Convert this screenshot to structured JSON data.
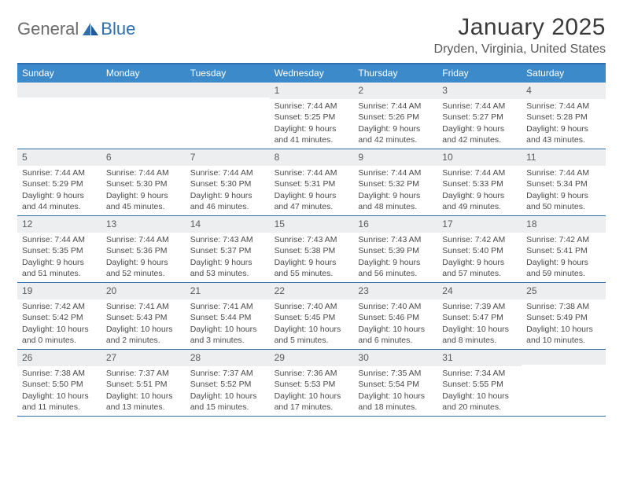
{
  "logo": {
    "text_a": "General",
    "text_b": "Blue"
  },
  "title": "January 2025",
  "location": "Dryden, Virginia, United States",
  "accent_color": "#3c8ac9",
  "border_color": "#2f6fae",
  "daynum_bg": "#eceeef",
  "day_names": [
    "Sunday",
    "Monday",
    "Tuesday",
    "Wednesday",
    "Thursday",
    "Friday",
    "Saturday"
  ],
  "weeks": [
    [
      null,
      null,
      null,
      {
        "n": "1",
        "sr": "Sunrise: 7:44 AM",
        "ss": "Sunset: 5:25 PM",
        "dl": "Daylight: 9 hours and 41 minutes."
      },
      {
        "n": "2",
        "sr": "Sunrise: 7:44 AM",
        "ss": "Sunset: 5:26 PM",
        "dl": "Daylight: 9 hours and 42 minutes."
      },
      {
        "n": "3",
        "sr": "Sunrise: 7:44 AM",
        "ss": "Sunset: 5:27 PM",
        "dl": "Daylight: 9 hours and 42 minutes."
      },
      {
        "n": "4",
        "sr": "Sunrise: 7:44 AM",
        "ss": "Sunset: 5:28 PM",
        "dl": "Daylight: 9 hours and 43 minutes."
      }
    ],
    [
      {
        "n": "5",
        "sr": "Sunrise: 7:44 AM",
        "ss": "Sunset: 5:29 PM",
        "dl": "Daylight: 9 hours and 44 minutes."
      },
      {
        "n": "6",
        "sr": "Sunrise: 7:44 AM",
        "ss": "Sunset: 5:30 PM",
        "dl": "Daylight: 9 hours and 45 minutes."
      },
      {
        "n": "7",
        "sr": "Sunrise: 7:44 AM",
        "ss": "Sunset: 5:30 PM",
        "dl": "Daylight: 9 hours and 46 minutes."
      },
      {
        "n": "8",
        "sr": "Sunrise: 7:44 AM",
        "ss": "Sunset: 5:31 PM",
        "dl": "Daylight: 9 hours and 47 minutes."
      },
      {
        "n": "9",
        "sr": "Sunrise: 7:44 AM",
        "ss": "Sunset: 5:32 PM",
        "dl": "Daylight: 9 hours and 48 minutes."
      },
      {
        "n": "10",
        "sr": "Sunrise: 7:44 AM",
        "ss": "Sunset: 5:33 PM",
        "dl": "Daylight: 9 hours and 49 minutes."
      },
      {
        "n": "11",
        "sr": "Sunrise: 7:44 AM",
        "ss": "Sunset: 5:34 PM",
        "dl": "Daylight: 9 hours and 50 minutes."
      }
    ],
    [
      {
        "n": "12",
        "sr": "Sunrise: 7:44 AM",
        "ss": "Sunset: 5:35 PM",
        "dl": "Daylight: 9 hours and 51 minutes."
      },
      {
        "n": "13",
        "sr": "Sunrise: 7:44 AM",
        "ss": "Sunset: 5:36 PM",
        "dl": "Daylight: 9 hours and 52 minutes."
      },
      {
        "n": "14",
        "sr": "Sunrise: 7:43 AM",
        "ss": "Sunset: 5:37 PM",
        "dl": "Daylight: 9 hours and 53 minutes."
      },
      {
        "n": "15",
        "sr": "Sunrise: 7:43 AM",
        "ss": "Sunset: 5:38 PM",
        "dl": "Daylight: 9 hours and 55 minutes."
      },
      {
        "n": "16",
        "sr": "Sunrise: 7:43 AM",
        "ss": "Sunset: 5:39 PM",
        "dl": "Daylight: 9 hours and 56 minutes."
      },
      {
        "n": "17",
        "sr": "Sunrise: 7:42 AM",
        "ss": "Sunset: 5:40 PM",
        "dl": "Daylight: 9 hours and 57 minutes."
      },
      {
        "n": "18",
        "sr": "Sunrise: 7:42 AM",
        "ss": "Sunset: 5:41 PM",
        "dl": "Daylight: 9 hours and 59 minutes."
      }
    ],
    [
      {
        "n": "19",
        "sr": "Sunrise: 7:42 AM",
        "ss": "Sunset: 5:42 PM",
        "dl": "Daylight: 10 hours and 0 minutes."
      },
      {
        "n": "20",
        "sr": "Sunrise: 7:41 AM",
        "ss": "Sunset: 5:43 PM",
        "dl": "Daylight: 10 hours and 2 minutes."
      },
      {
        "n": "21",
        "sr": "Sunrise: 7:41 AM",
        "ss": "Sunset: 5:44 PM",
        "dl": "Daylight: 10 hours and 3 minutes."
      },
      {
        "n": "22",
        "sr": "Sunrise: 7:40 AM",
        "ss": "Sunset: 5:45 PM",
        "dl": "Daylight: 10 hours and 5 minutes."
      },
      {
        "n": "23",
        "sr": "Sunrise: 7:40 AM",
        "ss": "Sunset: 5:46 PM",
        "dl": "Daylight: 10 hours and 6 minutes."
      },
      {
        "n": "24",
        "sr": "Sunrise: 7:39 AM",
        "ss": "Sunset: 5:47 PM",
        "dl": "Daylight: 10 hours and 8 minutes."
      },
      {
        "n": "25",
        "sr": "Sunrise: 7:38 AM",
        "ss": "Sunset: 5:49 PM",
        "dl": "Daylight: 10 hours and 10 minutes."
      }
    ],
    [
      {
        "n": "26",
        "sr": "Sunrise: 7:38 AM",
        "ss": "Sunset: 5:50 PM",
        "dl": "Daylight: 10 hours and 11 minutes."
      },
      {
        "n": "27",
        "sr": "Sunrise: 7:37 AM",
        "ss": "Sunset: 5:51 PM",
        "dl": "Daylight: 10 hours and 13 minutes."
      },
      {
        "n": "28",
        "sr": "Sunrise: 7:37 AM",
        "ss": "Sunset: 5:52 PM",
        "dl": "Daylight: 10 hours and 15 minutes."
      },
      {
        "n": "29",
        "sr": "Sunrise: 7:36 AM",
        "ss": "Sunset: 5:53 PM",
        "dl": "Daylight: 10 hours and 17 minutes."
      },
      {
        "n": "30",
        "sr": "Sunrise: 7:35 AM",
        "ss": "Sunset: 5:54 PM",
        "dl": "Daylight: 10 hours and 18 minutes."
      },
      {
        "n": "31",
        "sr": "Sunrise: 7:34 AM",
        "ss": "Sunset: 5:55 PM",
        "dl": "Daylight: 10 hours and 20 minutes."
      },
      null
    ]
  ]
}
